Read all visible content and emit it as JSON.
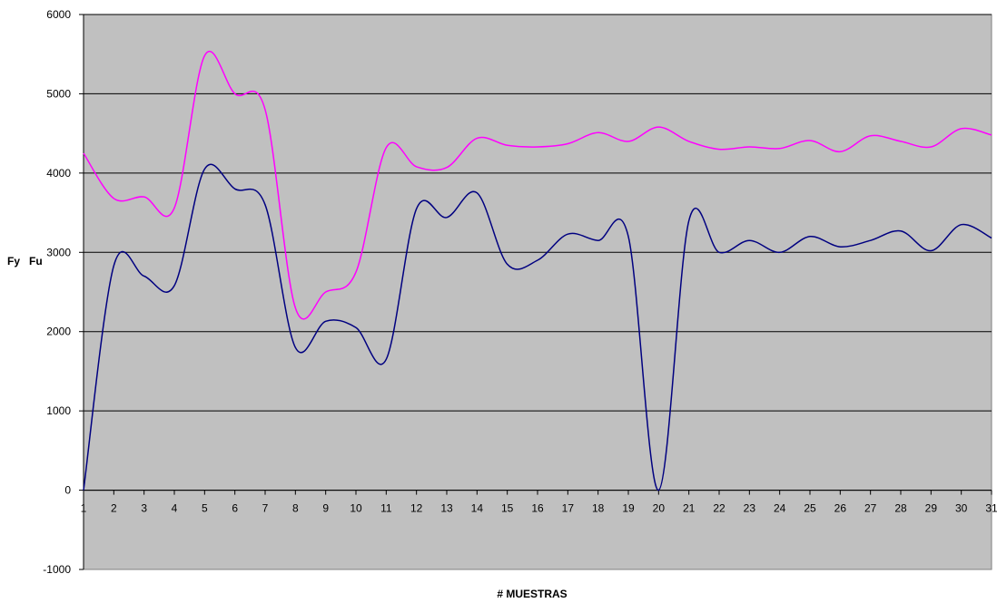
{
  "chart_data": {
    "type": "line",
    "title": "",
    "xlabel": "# MUESTRAS",
    "ylabel": "Fy   Fu",
    "x": [
      1,
      2,
      3,
      4,
      5,
      6,
      7,
      8,
      9,
      10,
      11,
      12,
      13,
      14,
      15,
      16,
      17,
      18,
      19,
      20,
      21,
      22,
      23,
      24,
      25,
      26,
      27,
      28,
      29,
      30,
      31
    ],
    "xlim": [
      1,
      31
    ],
    "ylim": [
      -1000,
      6000
    ],
    "yticks": [
      -1000,
      0,
      1000,
      2000,
      3000,
      4000,
      5000,
      6000
    ],
    "grid": "horizontal",
    "background": "#c0c0c0",
    "series": [
      {
        "color": "#ff00ff",
        "values": [
          4250,
          3680,
          3700,
          3560,
          5480,
          5000,
          4800,
          2300,
          2500,
          2750,
          4320,
          4080,
          4070,
          4440,
          4350,
          4330,
          4370,
          4510,
          4400,
          4580,
          4400,
          4300,
          4330,
          4310,
          4410,
          4270,
          4470,
          4400,
          4330,
          4560,
          4480
        ]
      },
      {
        "color": "#000080",
        "values": [
          0,
          2830,
          2700,
          2580,
          4050,
          3800,
          3600,
          1800,
          2130,
          2050,
          1650,
          3550,
          3440,
          3750,
          2850,
          2900,
          3230,
          3150,
          3200,
          0,
          3400,
          3000,
          3150,
          3000,
          3200,
          3070,
          3150,
          3270,
          3020,
          3350,
          3180
        ]
      }
    ]
  }
}
